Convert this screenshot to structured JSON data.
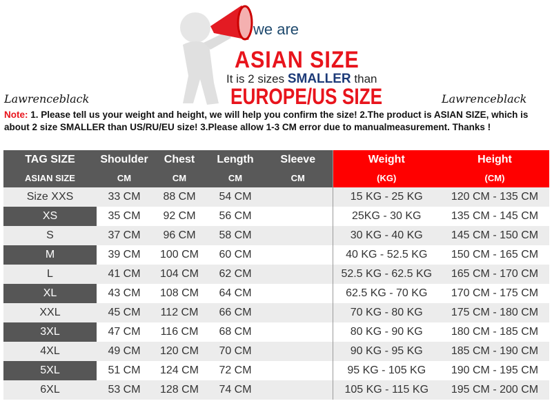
{
  "banner": {
    "we_are": "we are",
    "asian_size": "ASIAN SIZE",
    "smaller_pre": "It is 2 sizes",
    "smaller_word": "SMALLER",
    "smaller_post": "than",
    "europe": "EUROPE/US SIZE"
  },
  "brand_left": "Lawrenceblack",
  "brand_right": "Lawrenceblack",
  "note": {
    "label": "Note:",
    "text": " 1. Please tell us your weight and height, we will help you confirm the size!  2.The product is ASIAN SIZE, which is about 2 size SMALLER than US/RU/EU size!  3.Please allow 1-3 CM error due to manualmeasurement. Thanks !"
  },
  "headers": {
    "row1": [
      "TAG SIZE",
      "Shoulder",
      "Chest",
      "Length",
      "Sleeve",
      "Weight",
      "Height"
    ],
    "row2": [
      "ASIAN SIZE",
      "CM",
      "CM",
      "CM",
      "CM",
      "(KG)",
      "(CM)"
    ]
  },
  "header_colors": {
    "gray": "#595959",
    "red": "#ff0000"
  },
  "rows": [
    [
      "Size XXS",
      "33 CM",
      "88 CM",
      "54 CM",
      "",
      "15 KG - 25 KG",
      "120 CM  - 135 CM"
    ],
    [
      "XS",
      "35 CM",
      "92 CM",
      "56 CM",
      "",
      "25KG  - 30 KG",
      "135 CM - 145 CM"
    ],
    [
      "S",
      "37 CM",
      "96 CM",
      "58 CM",
      "",
      "30 KG - 40 KG",
      "145 CM - 150 CM"
    ],
    [
      "M",
      "39 CM",
      "100 CM",
      "60 CM",
      "",
      "40 KG - 52.5 KG",
      "150 CM - 165 CM"
    ],
    [
      "L",
      "41 CM",
      "104 CM",
      "62 CM",
      "",
      "52.5 KG  - 62.5 KG",
      "165 CM - 170 CM"
    ],
    [
      "XL",
      "43 CM",
      "108 CM",
      "64 CM",
      "",
      "62.5 KG - 70 KG",
      "170 CM - 175 CM"
    ],
    [
      "XXL",
      "45 CM",
      "112 CM",
      "66 CM",
      "",
      "70 KG  - 80  KG",
      "175 CM - 180 CM"
    ],
    [
      "3XL",
      "47 CM",
      "116 CM",
      "68 CM",
      "",
      "80 KG  - 90  KG",
      "180 CM - 185 CM"
    ],
    [
      "4XL",
      "49 CM",
      "120 CM",
      "70 CM",
      "",
      "90 KG  - 95 KG",
      "185 CM - 190 CM"
    ],
    [
      "5XL",
      "51 CM",
      "124 CM",
      "72 CM",
      "",
      "95 KG - 105 KG",
      "190 CM  - 195 CM"
    ],
    [
      "6XL",
      "53 CM",
      "128 CM",
      "74 CM",
      "",
      "105 KG - 115 KG",
      "195 CM  - 200 CM"
    ]
  ]
}
